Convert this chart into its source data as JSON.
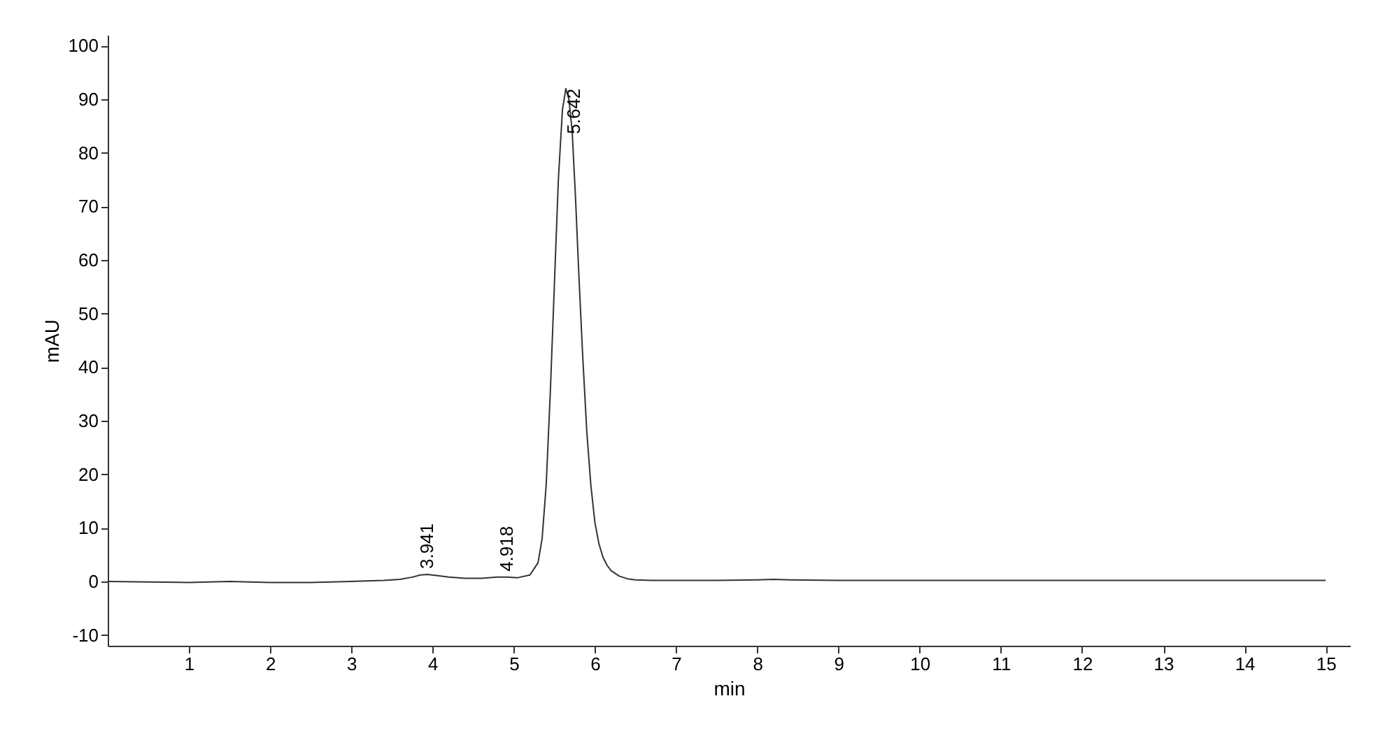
{
  "chart_data": {
    "type": "line",
    "xlabel": "min",
    "ylabel": "mAU",
    "x": [
      0,
      0.5,
      1,
      1.5,
      2,
      2.5,
      3,
      3.4,
      3.6,
      3.75,
      3.85,
      3.94,
      4.05,
      4.2,
      4.4,
      4.6,
      4.8,
      4.92,
      5.05,
      5.2,
      5.3,
      5.35,
      5.4,
      5.45,
      5.5,
      5.55,
      5.6,
      5.642,
      5.68,
      5.72,
      5.76,
      5.8,
      5.85,
      5.9,
      5.95,
      6.0,
      6.05,
      6.1,
      6.15,
      6.2,
      6.3,
      6.4,
      6.5,
      6.7,
      7,
      7.5,
      8,
      8.2,
      8.4,
      9,
      10,
      11,
      12,
      13,
      14,
      15
    ],
    "series": [
      {
        "color": "#333333",
        "values": [
          0,
          -0.1,
          -0.2,
          0,
          -0.2,
          -0.2,
          0,
          0.2,
          0.4,
          0.8,
          1.2,
          1.3,
          1.1,
          0.8,
          0.6,
          0.6,
          0.8,
          0.8,
          0.7,
          1.2,
          3.5,
          8,
          18,
          35,
          55,
          75,
          88,
          92,
          90,
          84,
          72,
          58,
          42,
          28,
          18,
          11,
          7,
          4.5,
          3,
          2,
          1,
          0.5,
          0.3,
          0.2,
          0.2,
          0.2,
          0.3,
          0.4,
          0.3,
          0.2,
          0.2,
          0.2,
          0.2,
          0.2,
          0.2,
          0.2
        ]
      }
    ],
    "xlim": [
      0,
      15.3
    ],
    "ylim": [
      -12,
      102
    ],
    "xticks": [
      1,
      2,
      3,
      4,
      5,
      6,
      7,
      8,
      9,
      10,
      11,
      12,
      13,
      14,
      15
    ],
    "yticks": [
      -10,
      0,
      10,
      20,
      30,
      40,
      50,
      60,
      70,
      80,
      90,
      100
    ],
    "grid": false,
    "annotations": [
      {
        "text": "3.941",
        "x": 3.941,
        "y": 1.3
      },
      {
        "text": "4.918",
        "x": 4.918,
        "y": 0.8
      },
      {
        "text": "5.642",
        "x": 5.642,
        "y": 92
      }
    ]
  }
}
